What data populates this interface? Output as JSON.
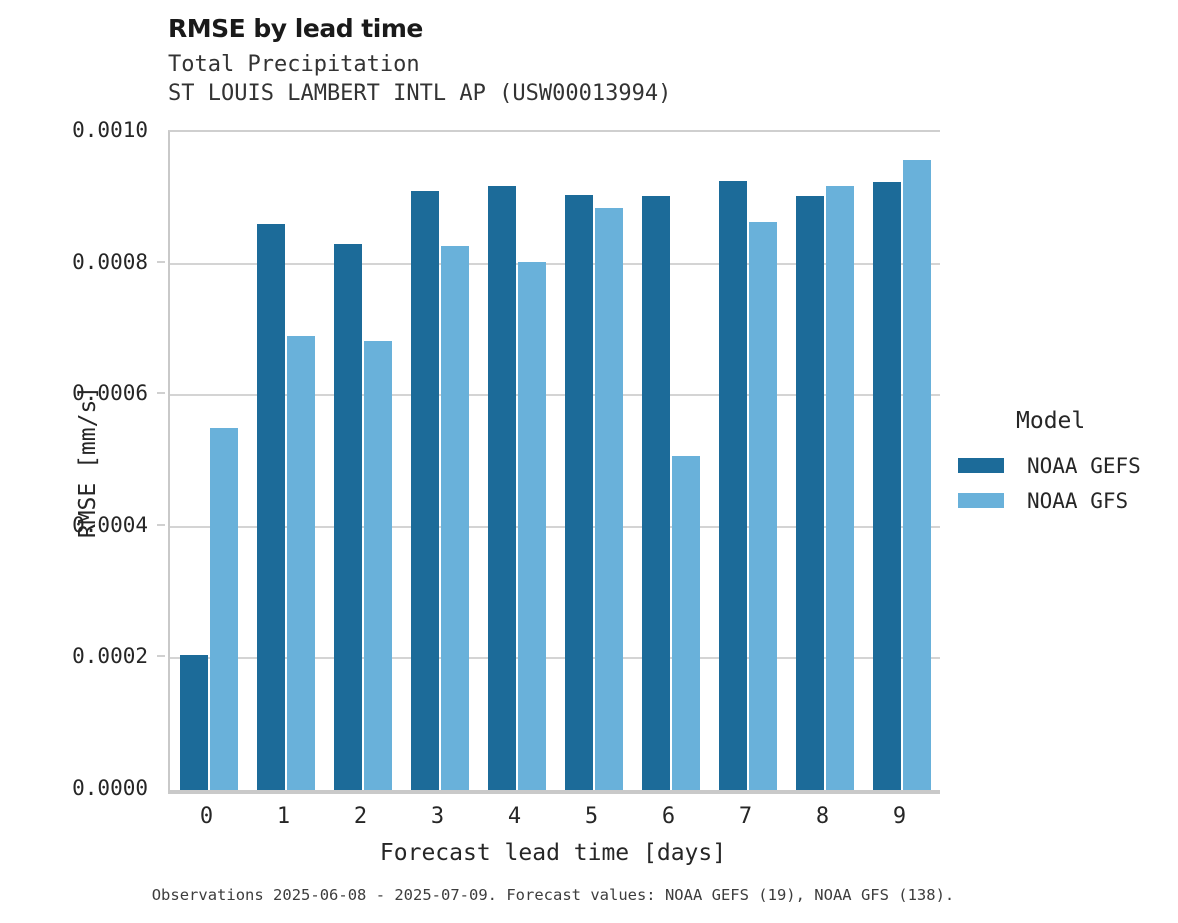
{
  "title": "RMSE by lead time",
  "subtitle1": "Total Precipitation",
  "subtitle2": "ST LOUIS LAMBERT INTL AP (USW00013994)",
  "footer": "Observations 2025-06-08 - 2025-07-09. Forecast values: NOAA GEFS (19), NOAA GFS (138).",
  "colors": {
    "gefs_dark_blue": "#1c6b99",
    "gfs_light_blue": "#69b1da",
    "gridline_gray": "#d4d4d4",
    "spine_gray": "#c9c9c9",
    "text_dark": "#262626"
  },
  "legend": {
    "title": "Model"
  },
  "chart_data": {
    "type": "bar",
    "title": "RMSE by lead time",
    "subtitle": [
      "Total Precipitation",
      "ST LOUIS LAMBERT INTL AP (USW00013994)"
    ],
    "xlabel": "Forecast lead time [days]",
    "ylabel": "RMSE [mm/s]",
    "categories": [
      "0",
      "1",
      "2",
      "3",
      "4",
      "5",
      "6",
      "7",
      "8",
      "9"
    ],
    "series": [
      {
        "name": "NOAA GEFS",
        "color": "#1c6b99",
        "values": [
          0.000205,
          0.00086,
          0.00083,
          0.00091,
          0.000918,
          0.000905,
          0.000902,
          0.000925,
          0.000903,
          0.000924
        ]
      },
      {
        "name": "NOAA GFS",
        "color": "#69b1da",
        "values": [
          0.00055,
          0.00069,
          0.000683,
          0.000827,
          0.000802,
          0.000885,
          0.000508,
          0.000863,
          0.000918,
          0.000957
        ]
      }
    ],
    "ylim": [
      0,
      0.001
    ],
    "yticks": [
      {
        "value": 0.0,
        "label": "0.0000"
      },
      {
        "value": 0.0002,
        "label": "0.0002"
      },
      {
        "value": 0.0004,
        "label": "0.0004"
      },
      {
        "value": 0.0006,
        "label": "0.0006"
      },
      {
        "value": 0.0008,
        "label": "0.0008"
      },
      {
        "value": 0.001,
        "label": "0.0010"
      }
    ],
    "grid": true,
    "legend_title": "Model",
    "legend_position": "right"
  }
}
